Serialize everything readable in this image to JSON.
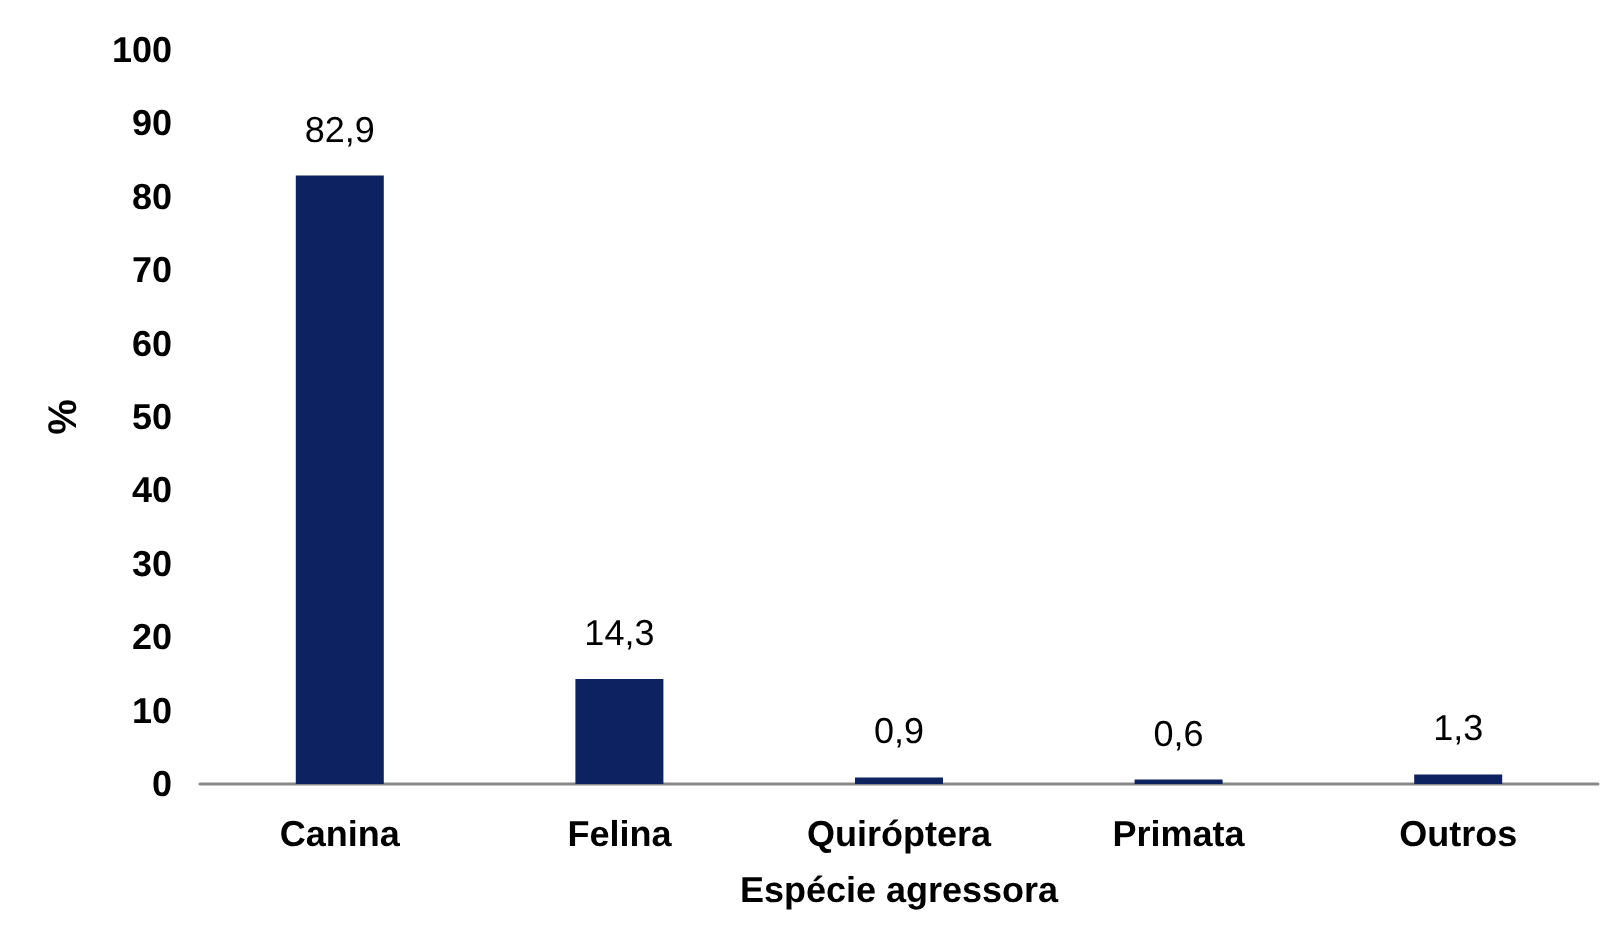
{
  "chart_data": {
    "type": "bar",
    "xlabel": "Espécie agressora",
    "ylabel": "%",
    "categories": [
      "Canina",
      "Felina",
      "Quiróptera",
      "Primata",
      "Outros"
    ],
    "values": [
      82.9,
      14.3,
      0.9,
      0.6,
      1.3
    ],
    "value_labels": [
      "82,9",
      "14,3",
      "0,9",
      "0,6",
      "1,3"
    ],
    "color": "#0d2260",
    "ylim": [
      0,
      100
    ],
    "yticks": [
      0,
      10,
      20,
      30,
      40,
      50,
      60,
      70,
      80,
      90,
      100
    ],
    "grid": false
  }
}
